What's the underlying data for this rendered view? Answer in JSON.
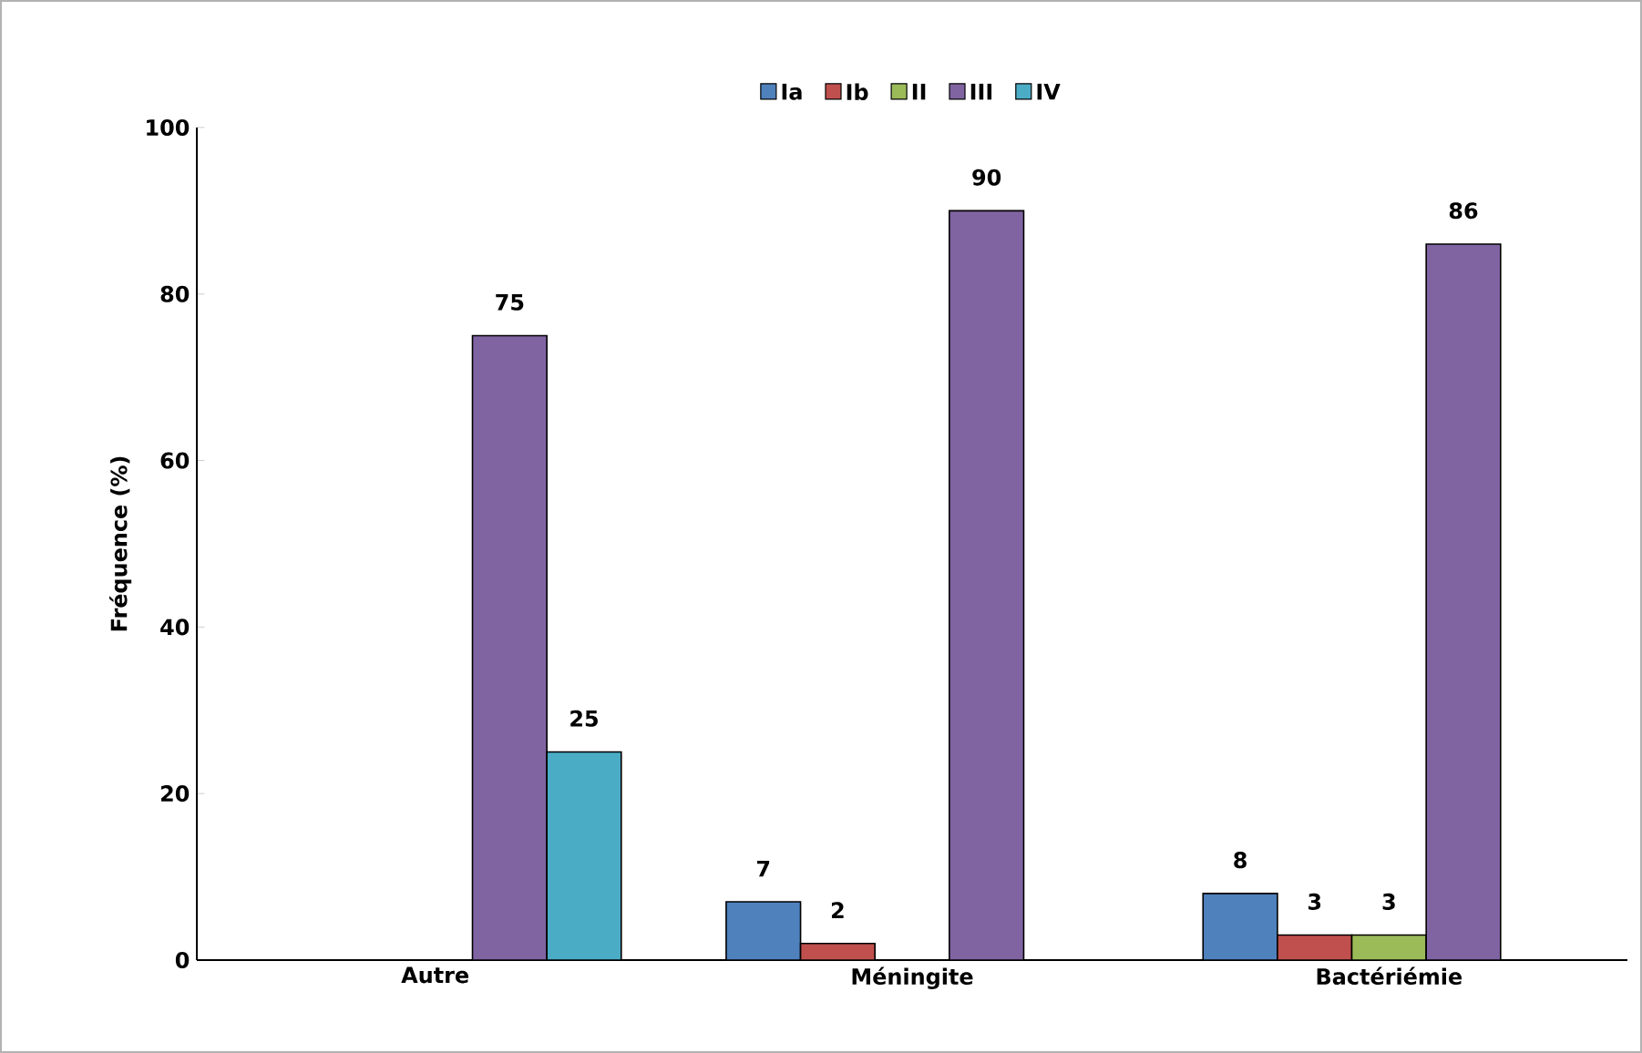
{
  "chart_data": {
    "type": "bar",
    "ylabel": "Fréquence (%)",
    "categories": [
      "Autre",
      "Méningite",
      "Bactériémie"
    ],
    "series": [
      {
        "name": "Ia",
        "color": "#4f81bd",
        "values": [
          null,
          7,
          8
        ],
        "value_labels": [
          null,
          "7",
          "8"
        ]
      },
      {
        "name": "Ib",
        "color": "#c0504d",
        "values": [
          null,
          2,
          3
        ],
        "value_labels": [
          null,
          "2",
          "3"
        ]
      },
      {
        "name": "II",
        "color": "#9bbb59",
        "values": [
          null,
          null,
          3
        ],
        "value_labels": [
          null,
          null,
          "3"
        ]
      },
      {
        "name": "III",
        "color": "#8064a2",
        "values": [
          75,
          90,
          86
        ],
        "value_labels": [
          "75",
          "90",
          "86"
        ]
      },
      {
        "name": "IV",
        "color": "#4bacc6",
        "values": [
          25,
          null,
          null
        ],
        "value_labels": [
          "25",
          null,
          null
        ]
      }
    ],
    "ylim": [
      0,
      100
    ],
    "yticks": [
      0,
      20,
      40,
      60,
      80,
      100
    ],
    "grid": false,
    "legend": "top"
  }
}
